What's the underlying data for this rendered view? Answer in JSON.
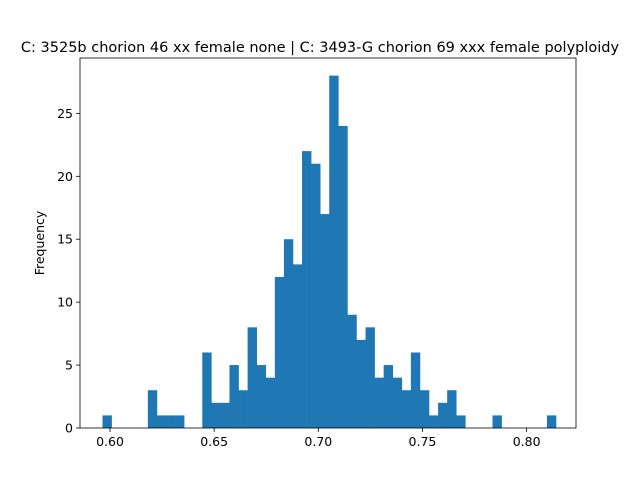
{
  "chart_data": {
    "type": "bar",
    "title": "C: 3525b chorion 46 xx female none | C: 3493-G chorion 69 xxx female polyploidy",
    "xlabel": "",
    "ylabel": "Frequency",
    "xlim": [
      0.5856,
      0.8237
    ],
    "ylim": [
      0,
      29.4
    ],
    "xticks": [
      "0.60",
      "0.65",
      "0.70",
      "0.75",
      "0.80"
    ],
    "yticks": [
      "0",
      "5",
      "10",
      "15",
      "20",
      "25"
    ],
    "bar_color": "#1f77b4",
    "bin_width": 0.004354,
    "bin_edges_start": 0.5964,
    "values": [
      1,
      0,
      0,
      0,
      0,
      3,
      1,
      1,
      1,
      0,
      0,
      6,
      2,
      2,
      5,
      3,
      8,
      5,
      4,
      12,
      15,
      13,
      22,
      21,
      17,
      28,
      24,
      9,
      7,
      8,
      4,
      5,
      4,
      3,
      6,
      3,
      1,
      2,
      3,
      1,
      0,
      0,
      0,
      1,
      0,
      0,
      0,
      0,
      0,
      1
    ],
    "grid": false,
    "legend": "none"
  }
}
